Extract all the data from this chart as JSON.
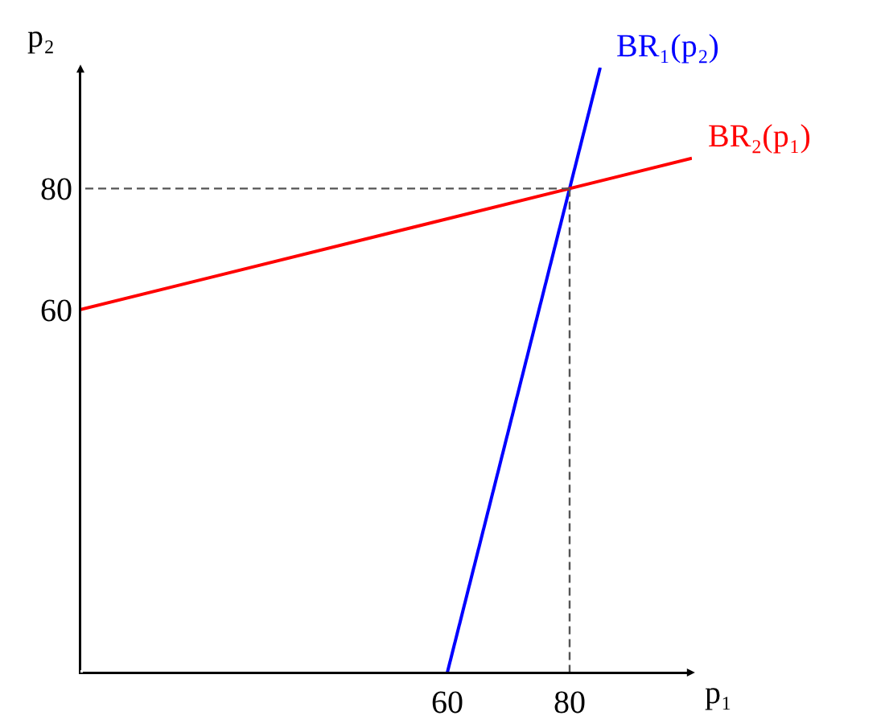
{
  "chart_data": {
    "type": "line",
    "xlabel": "p₁",
    "ylabel": "p₂",
    "xlim": [
      0,
      100
    ],
    "ylim": [
      0,
      100
    ],
    "xticks": [
      60,
      80
    ],
    "yticks": [
      60,
      80
    ],
    "grid": false,
    "legend": false,
    "marker": "none",
    "series": [
      {
        "name": "BR₁(p₂)",
        "color": "#0000ff",
        "x": [
          60,
          85
        ],
        "values": [
          0,
          100
        ]
      },
      {
        "name": "BR₂(p₁)",
        "color": "#ff0000",
        "x": [
          0,
          100
        ],
        "values": [
          60,
          85
        ]
      },
      {
        "color": "#555555",
        "line_style": "dashed",
        "x": [
          80,
          0
        ],
        "values": [
          80,
          80
        ]
      },
      {
        "color": "#555555",
        "line_style": "dashed",
        "x": [
          80,
          80
        ],
        "values": [
          80,
          0
        ]
      }
    ]
  }
}
